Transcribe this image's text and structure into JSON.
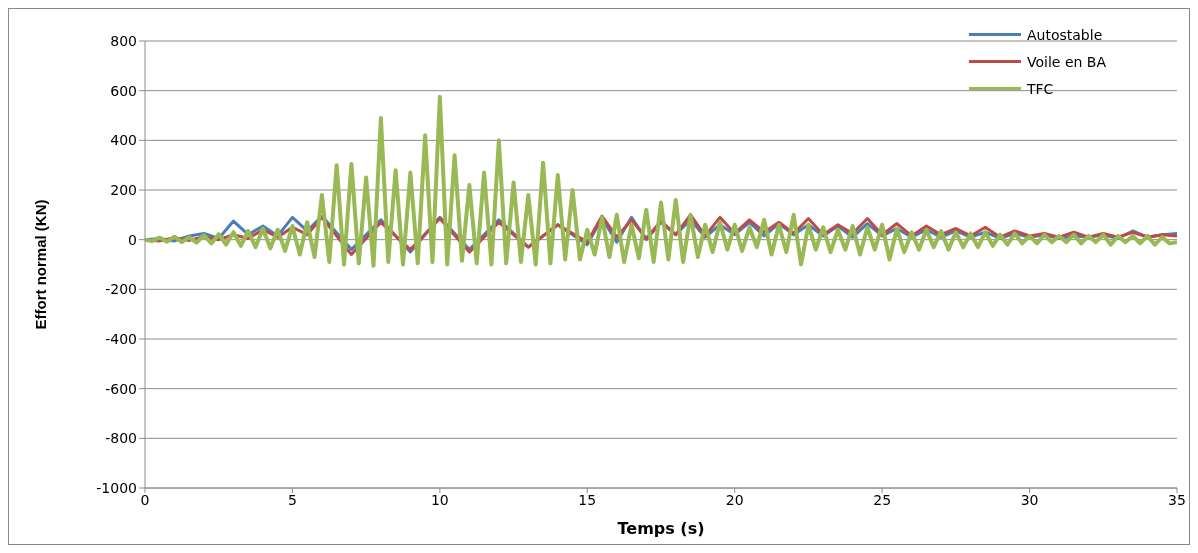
{
  "chart_data": {
    "type": "line",
    "xlabel": "Temps (s)",
    "ylabel": "Effort normal (KN)",
    "xlim": [
      0,
      35
    ],
    "xticks": [
      0,
      5,
      10,
      15,
      20,
      25,
      30,
      35
    ],
    "ylim": [
      -1000,
      800
    ],
    "yticks": [
      -1000,
      -800,
      -600,
      -400,
      -200,
      0,
      200,
      400,
      600,
      800
    ],
    "grid": "y",
    "legend": "top right",
    "marker": "none",
    "line_style": "solid",
    "series": [
      {
        "name": "Autostable",
        "color": "#4a7ebb",
        "x": [
          0,
          0.5,
          1,
          1.5,
          2,
          2.5,
          3,
          3.5,
          4,
          4.5,
          5,
          5.5,
          6,
          7,
          8,
          9,
          10,
          11,
          12,
          13,
          14,
          15,
          15.5,
          16,
          16.5,
          17,
          17.5,
          18,
          18.5,
          19,
          19.5,
          20,
          20.5,
          21,
          21.5,
          22,
          22.5,
          23,
          23.5,
          24,
          24.5,
          25,
          25.5,
          26,
          26.5,
          27,
          27.5,
          28,
          28.5,
          29,
          29.5,
          30,
          30.5,
          31,
          31.5,
          32,
          32.5,
          33,
          33.5,
          34,
          34.5,
          35
        ],
        "values": [
          0,
          5,
          -5,
          15,
          25,
          5,
          75,
          20,
          55,
          15,
          90,
          35,
          95,
          -40,
          80,
          -50,
          90,
          -40,
          80,
          -30,
          60,
          -20,
          85,
          -10,
          90,
          0,
          70,
          20,
          80,
          10,
          60,
          20,
          70,
          15,
          65,
          20,
          60,
          15,
          55,
          10,
          65,
          15,
          45,
          10,
          40,
          10,
          35,
          10,
          30,
          5,
          25,
          10,
          20,
          5,
          15,
          10,
          20,
          5,
          35,
          10,
          20,
          25
        ]
      },
      {
        "name": "Voile en BA",
        "color": "#be4b48",
        "x": [
          0,
          0.5,
          1,
          1.5,
          2,
          2.5,
          3,
          3.5,
          4,
          4.5,
          5,
          5.5,
          6,
          7,
          8,
          9,
          10,
          11,
          12,
          13,
          14,
          15,
          15.5,
          16,
          16.5,
          17,
          17.5,
          18,
          18.5,
          19,
          19.5,
          20,
          20.5,
          21,
          21.5,
          22,
          22.5,
          23,
          23.5,
          24,
          24.5,
          25,
          25.5,
          26,
          26.5,
          27,
          27.5,
          28,
          28.5,
          29,
          29.5,
          30,
          30.5,
          31,
          31.5,
          32,
          32.5,
          33,
          33.5,
          34,
          34.5,
          35
        ],
        "values": [
          0,
          -5,
          8,
          -3,
          12,
          0,
          20,
          5,
          40,
          10,
          50,
          20,
          90,
          -60,
          70,
          -40,
          85,
          -50,
          70,
          -30,
          60,
          -10,
          95,
          10,
          80,
          5,
          75,
          20,
          100,
          15,
          90,
          25,
          80,
          30,
          70,
          25,
          85,
          20,
          60,
          25,
          85,
          20,
          65,
          15,
          55,
          20,
          45,
          15,
          50,
          10,
          35,
          15,
          25,
          10,
          30,
          10,
          25,
          10,
          30,
          10,
          20,
          15
        ]
      },
      {
        "name": "TFC",
        "color": "#98b954",
        "x": [
          0,
          0.25,
          0.5,
          0.75,
          1,
          1.25,
          1.5,
          1.75,
          2,
          2.25,
          2.5,
          2.75,
          3,
          3.25,
          3.5,
          3.75,
          4,
          4.25,
          4.5,
          4.75,
          5,
          5.25,
          5.5,
          5.75,
          6,
          6.25,
          6.5,
          6.75,
          7,
          7.25,
          7.5,
          7.75,
          8,
          8.25,
          8.5,
          8.75,
          9,
          9.25,
          9.5,
          9.75,
          10,
          10.25,
          10.5,
          10.75,
          11,
          11.25,
          11.5,
          11.75,
          12,
          12.25,
          12.5,
          12.75,
          13,
          13.25,
          13.5,
          13.75,
          14,
          14.25,
          14.5,
          14.75,
          15,
          15.25,
          15.5,
          15.75,
          16,
          16.25,
          16.5,
          16.75,
          17,
          17.25,
          17.5,
          17.75,
          18,
          18.25,
          18.5,
          18.75,
          19,
          19.25,
          19.5,
          19.75,
          20,
          20.25,
          20.5,
          20.75,
          21,
          21.25,
          21.5,
          21.75,
          22,
          22.25,
          22.5,
          22.75,
          23,
          23.25,
          23.5,
          23.75,
          24,
          24.25,
          24.5,
          24.75,
          25,
          25.25,
          25.5,
          25.75,
          26,
          26.25,
          26.5,
          26.75,
          27,
          27.25,
          27.5,
          27.75,
          28,
          28.25,
          28.5,
          28.75,
          29,
          29.25,
          29.5,
          29.75,
          30,
          30.25,
          30.5,
          30.75,
          31,
          31.25,
          31.5,
          31.75,
          32,
          32.25,
          32.5,
          32.75,
          33,
          33.25,
          33.5,
          33.75,
          34,
          34.25,
          34.5,
          34.75,
          35
        ],
        "values": [
          0,
          -5,
          8,
          -8,
          12,
          -10,
          10,
          -12,
          18,
          -15,
          22,
          -20,
          30,
          -25,
          35,
          -30,
          45,
          -35,
          40,
          -45,
          55,
          -60,
          70,
          -70,
          180,
          -90,
          300,
          -100,
          305,
          -95,
          250,
          -105,
          490,
          -90,
          280,
          -100,
          270,
          -95,
          420,
          -90,
          575,
          -100,
          340,
          -85,
          220,
          -95,
          270,
          -100,
          400,
          -95,
          230,
          -90,
          180,
          -100,
          310,
          -95,
          260,
          -80,
          200,
          -80,
          40,
          -60,
          90,
          -70,
          100,
          -90,
          60,
          -75,
          120,
          -90,
          150,
          -80,
          160,
          -90,
          100,
          -70,
          60,
          -50,
          70,
          -40,
          60,
          -45,
          50,
          -30,
          80,
          -60,
          60,
          -50,
          100,
          -100,
          60,
          -40,
          50,
          -50,
          40,
          -40,
          55,
          -60,
          50,
          -40,
          60,
          -80,
          45,
          -50,
          30,
          -40,
          40,
          -30,
          35,
          -40,
          30,
          -30,
          25,
          -30,
          30,
          -25,
          20,
          -20,
          25,
          -15,
          15,
          -15,
          20,
          -10,
          15,
          -10,
          20,
          -15,
          15,
          -10,
          20,
          -20,
          15,
          -10,
          15,
          -15,
          15,
          -20,
          10,
          -15,
          -10
        ]
      }
    ]
  }
}
